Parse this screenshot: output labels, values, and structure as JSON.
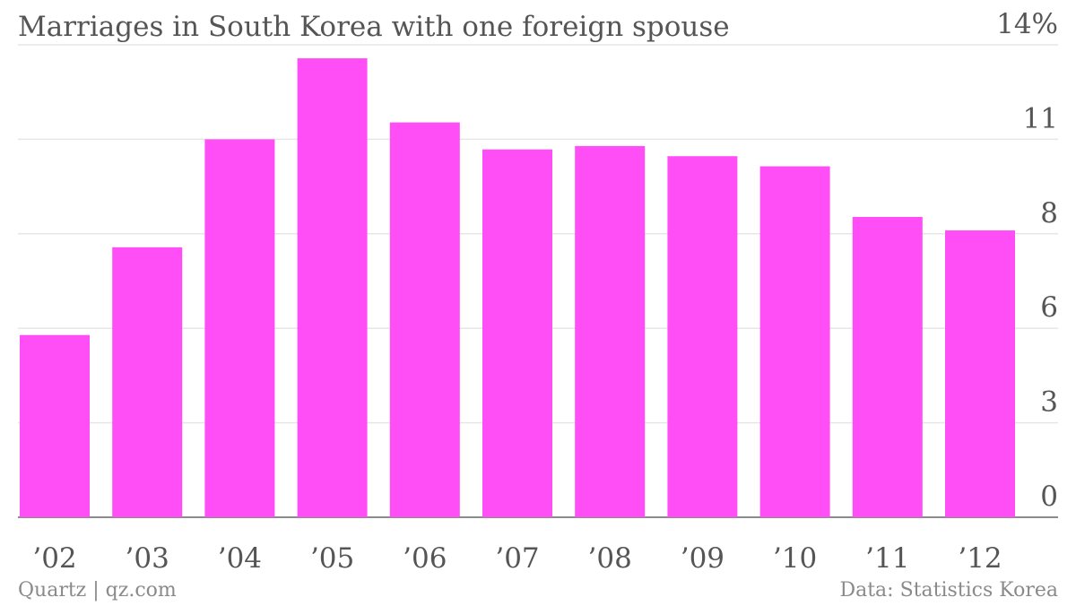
{
  "chart_data": {
    "type": "bar",
    "title": "Marriages in South Korea with one foreign spouse",
    "categories": [
      "’02",
      "’03",
      "’04",
      "’05",
      "’06",
      "’07",
      "’08",
      "’09",
      "’10",
      "’11",
      "’12"
    ],
    "values": [
      5.4,
      8.0,
      11.2,
      13.6,
      11.7,
      10.9,
      11.0,
      10.7,
      10.4,
      8.9,
      8.5
    ],
    "y_ticks": [
      {
        "value": 0,
        "label": "0"
      },
      {
        "value": 2.8,
        "label": "3"
      },
      {
        "value": 5.6,
        "label": "6"
      },
      {
        "value": 8.4,
        "label": "8"
      },
      {
        "value": 11.2,
        "label": "11"
      },
      {
        "value": 14,
        "label": "14%"
      }
    ],
    "ylim": [
      0,
      14
    ],
    "xlabel": "",
    "ylabel": "",
    "grid": true,
    "colors": {
      "bar": "#ff4ef6",
      "grid": "#e6e6e6",
      "baseline": "#666666",
      "text": "#555555"
    }
  },
  "footer": {
    "source_left": "Quartz | qz.com",
    "source_right": "Data: Statistics Korea"
  }
}
